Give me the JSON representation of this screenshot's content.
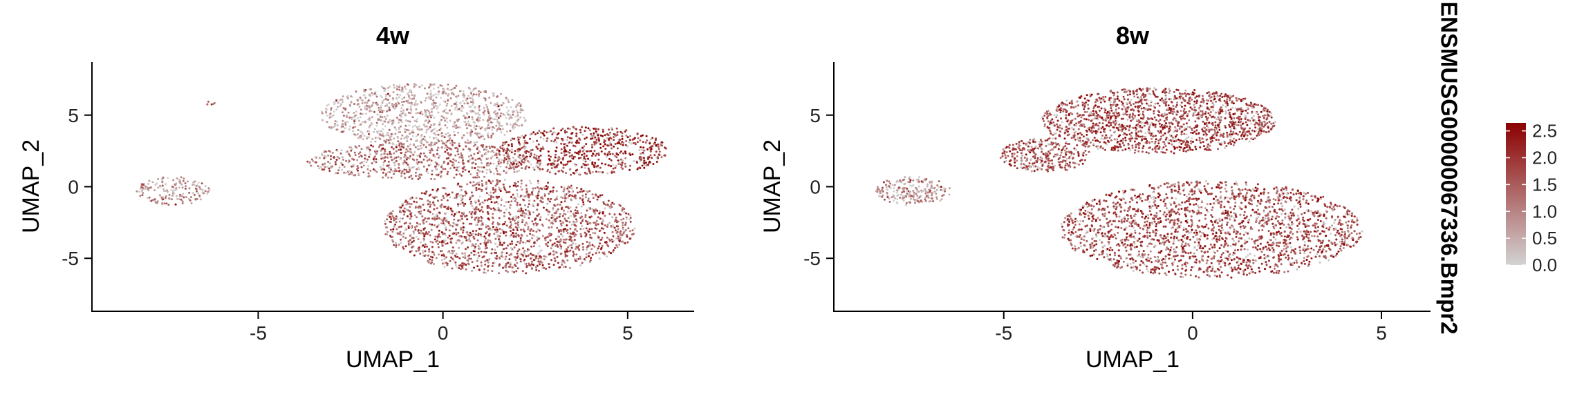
{
  "chart_data": [
    {
      "type": "scatter",
      "title": "4w",
      "xlabel": "UMAP_1",
      "ylabel": "UMAP_2",
      "xlim": [
        -9.5,
        6.8
      ],
      "ylim": [
        -8.7,
        8.7
      ],
      "xticks": [
        -5,
        0,
        5
      ],
      "yticks": [
        -5,
        0,
        5
      ],
      "grid": false,
      "point_count_note": "dense point cloud; cluster regions approximated",
      "regions": [
        {
          "name": "left-small-cluster",
          "cx": -7.3,
          "cy": -0.3,
          "rx": 1.0,
          "ry": 1.0,
          "expression": 0.9
        },
        {
          "name": "far-left-dot",
          "cx": -6.3,
          "cy": 5.8,
          "rx": 0.15,
          "ry": 0.15,
          "expression": 1.2
        },
        {
          "name": "upper-right-lobe",
          "cx": 3.8,
          "cy": 2.5,
          "rx": 2.3,
          "ry": 1.7,
          "expression": 2.0
        },
        {
          "name": "middle-band",
          "cx": -0.5,
          "cy": 1.8,
          "rx": 3.2,
          "ry": 1.3,
          "expression": 1.3
        },
        {
          "name": "lower-body",
          "cx": 1.8,
          "cy": -2.8,
          "rx": 3.4,
          "ry": 3.3,
          "expression": 1.5
        },
        {
          "name": "sparse-top-scatter",
          "cx": -0.5,
          "cy": 5.0,
          "rx": 2.8,
          "ry": 2.2,
          "expression": 0.6
        }
      ]
    },
    {
      "type": "scatter",
      "title": "8w",
      "xlabel": "UMAP_1",
      "ylabel": "UMAP_2",
      "xlim": [
        -9.5,
        6.3
      ],
      "ylim": [
        -8.7,
        8.7
      ],
      "xticks": [
        -5,
        0,
        5
      ],
      "yticks": [
        -5,
        0,
        5
      ],
      "grid": false,
      "regions": [
        {
          "name": "left-small-cluster",
          "cx": -7.4,
          "cy": -0.3,
          "rx": 1.0,
          "ry": 1.0,
          "expression": 0.8
        },
        {
          "name": "upper-lobe",
          "cx": -0.9,
          "cy": 4.6,
          "rx": 3.1,
          "ry": 2.3,
          "expression": 1.8
        },
        {
          "name": "left-arm",
          "cx": -3.9,
          "cy": 2.2,
          "rx": 1.2,
          "ry": 1.2,
          "expression": 1.6
        },
        {
          "name": "lower-body",
          "cx": 0.5,
          "cy": -3.0,
          "rx": 4.0,
          "ry": 3.4,
          "expression": 1.7
        }
      ]
    }
  ],
  "legend": {
    "title": "ENSMUSG00000067336.Bmpr2",
    "ticks": [
      "2.5",
      "2.0",
      "1.5",
      "1.0",
      "0.5",
      "0.0"
    ],
    "range": [
      0.0,
      2.65
    ],
    "low_color": "#d3d3d3",
    "high_color": "#8b0000"
  }
}
